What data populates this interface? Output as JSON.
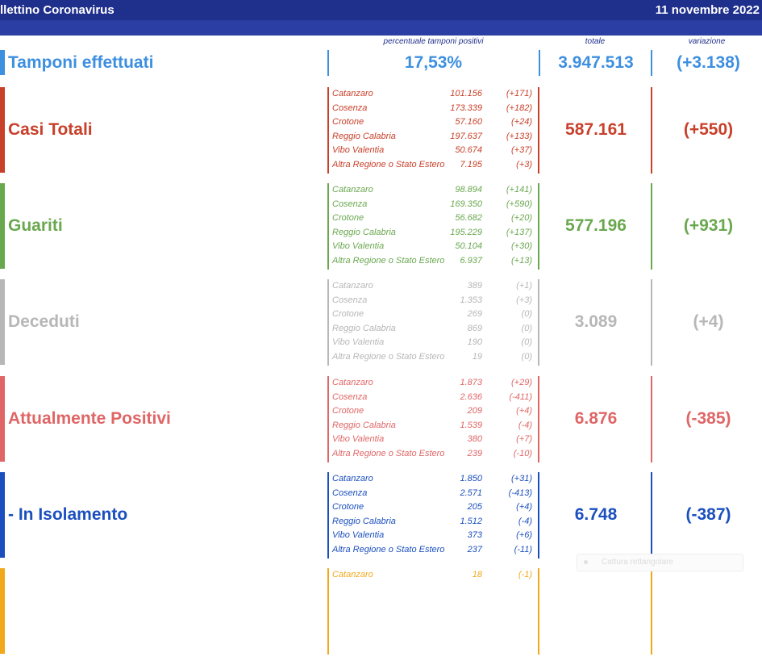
{
  "header": {
    "title": "llettino Coronavirus",
    "date": "11 novembre 2022"
  },
  "columns": {
    "percent": "percentuale tamponi positivi",
    "total": "totale",
    "change": "variazione"
  },
  "tamponi": {
    "label": "Tamponi effettuati",
    "percent": "17,53%",
    "total": "3.947.513",
    "change": "(+3.138)",
    "color": "#3d8fe0"
  },
  "sections": [
    {
      "id": "casi",
      "label": "Casi Totali",
      "total": "587.161",
      "change": "(+550)",
      "color": "#c8402a",
      "rows": [
        {
          "name": "Catanzaro",
          "value": "101.156",
          "delta": "(+171)"
        },
        {
          "name": "Cosenza",
          "value": "173.339",
          "delta": "(+182)"
        },
        {
          "name": "Crotone",
          "value": "57.160",
          "delta": "(+24)"
        },
        {
          "name": "Reggio Calabria",
          "value": "197.637",
          "delta": "(+133)"
        },
        {
          "name": "Vibo Valentia",
          "value": "50.674",
          "delta": "(+37)"
        },
        {
          "name": "Altra Regione o Stato Estero",
          "value": "7.195",
          "delta": "(+3)"
        }
      ]
    },
    {
      "id": "guariti",
      "label": "Guariti",
      "total": "577.196",
      "change": "(+931)",
      "color": "#6aa84f",
      "rows": [
        {
          "name": "Catanzaro",
          "value": "98.894",
          "delta": "(+141)"
        },
        {
          "name": "Cosenza",
          "value": "169.350",
          "delta": "(+590)"
        },
        {
          "name": "Crotone",
          "value": "56.682",
          "delta": "(+20)"
        },
        {
          "name": "Reggio Calabria",
          "value": "195.229",
          "delta": "(+137)"
        },
        {
          "name": "Vibo Valentia",
          "value": "50.104",
          "delta": "(+30)"
        },
        {
          "name": "Altra Regione o Stato Estero",
          "value": "6.937",
          "delta": "(+13)"
        }
      ]
    },
    {
      "id": "deceduti",
      "label": "Deceduti",
      "total": "3.089",
      "change": "(+4)",
      "color": "#b7b7b7",
      "rows": [
        {
          "name": "Catanzaro",
          "value": "389",
          "delta": "(+1)"
        },
        {
          "name": "Cosenza",
          "value": "1.353",
          "delta": "(+3)"
        },
        {
          "name": "Crotone",
          "value": "269",
          "delta": "(0)"
        },
        {
          "name": "Reggio Calabria",
          "value": "869",
          "delta": "(0)"
        },
        {
          "name": "Vibo Valentia",
          "value": "190",
          "delta": "(0)"
        },
        {
          "name": "Altra Regione o Stato Estero",
          "value": "19",
          "delta": "(0)"
        }
      ]
    },
    {
      "id": "positivi",
      "label": "Attualmente Positivi",
      "total": "6.876",
      "change": "(-385)",
      "color": "#e06666",
      "rows": [
        {
          "name": "Catanzaro",
          "value": "1.873",
          "delta": "(+29)"
        },
        {
          "name": "Cosenza",
          "value": "2.636",
          "delta": "(-411)"
        },
        {
          "name": "Crotone",
          "value": "209",
          "delta": "(+4)"
        },
        {
          "name": "Reggio Calabria",
          "value": "1.539",
          "delta": "(-4)"
        },
        {
          "name": "Vibo Valentia",
          "value": "380",
          "delta": "(+7)"
        },
        {
          "name": "Altra Regione o Stato Estero",
          "value": "239",
          "delta": "(-10)"
        }
      ]
    },
    {
      "id": "isolamento",
      "label": " - In Isolamento",
      "total": "6.748",
      "change": "(-387)",
      "color": "#1b4fbf",
      "rows": [
        {
          "name": "Catanzaro",
          "value": "1.850",
          "delta": "(+31)"
        },
        {
          "name": "Cosenza",
          "value": "2.571",
          "delta": "(-413)"
        },
        {
          "name": "Crotone",
          "value": "205",
          "delta": "(+4)"
        },
        {
          "name": "Reggio Calabria",
          "value": "1.512",
          "delta": "(-4)"
        },
        {
          "name": "Vibo Valentia",
          "value": "373",
          "delta": "(+6)"
        },
        {
          "name": "Altra Regione o Stato Estero",
          "value": "237",
          "delta": "(-11)"
        }
      ]
    },
    {
      "id": "ricoverati",
      "label": "",
      "total": "",
      "change": "",
      "color": "#f1a81b",
      "rows": [
        {
          "name": "Catanzaro",
          "value": "18",
          "delta": "(-1)"
        }
      ]
    }
  ],
  "overlay": {
    "cattura": "Cattura rettangolare"
  }
}
